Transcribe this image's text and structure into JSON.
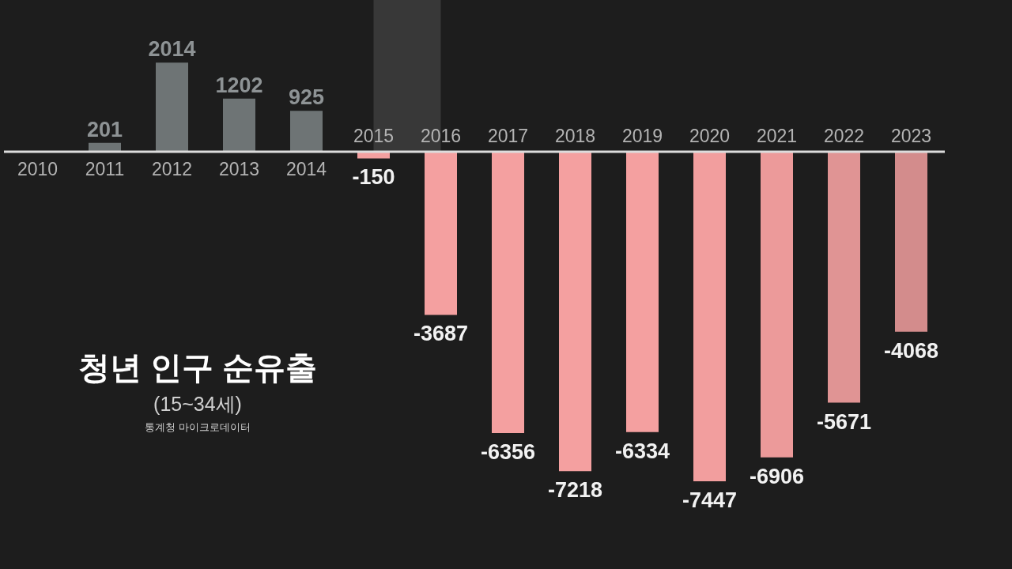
{
  "chart_data": {
    "type": "bar",
    "title": "청년 인구 순유출",
    "subtitle": "(15~34세)",
    "annotations": [
      "통계청 마이크로데이터"
    ],
    "categories": [
      "2010",
      "2011",
      "2012",
      "2013",
      "2014",
      "2015",
      "2016",
      "2017",
      "2018",
      "2019",
      "2020",
      "2021",
      "2022",
      "2023"
    ],
    "values": [
      null,
      201,
      2014,
      1202,
      925,
      -150,
      -3687,
      -6356,
      -7218,
      -6334,
      -7447,
      -6906,
      -5671,
      -4068
    ],
    "colors": [
      "#6e7475",
      "#6e7475",
      "#6e7475",
      "#6e7475",
      "#6e7475",
      "#f4a0a0",
      "#f4a0a0",
      "#f4a0a0",
      "#f4a0a0",
      "#f4a0a0",
      "#f29e9e",
      "#ec9a9a",
      "#e09494",
      "#d38c8c"
    ],
    "bands": [
      {
        "axis": "x",
        "from": "2015",
        "to": "2016",
        "color": "#383838"
      }
    ],
    "data_labels": true
  }
}
